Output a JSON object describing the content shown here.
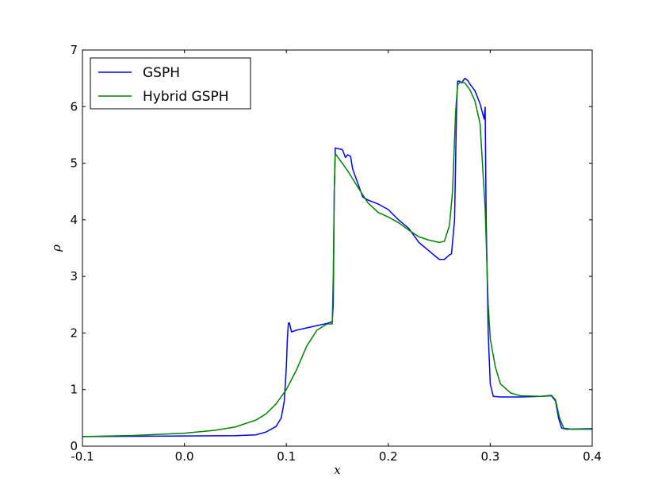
{
  "chart_data": {
    "type": "line",
    "xlabel": "x",
    "ylabel": "ρ",
    "xlim": [
      -0.1,
      0.4
    ],
    "ylim": [
      0,
      7
    ],
    "xticks": [
      "-0.1",
      "0.0",
      "0.1",
      "0.2",
      "0.3",
      "0.4"
    ],
    "xtick_values": [
      -0.1,
      0.0,
      0.1,
      0.2,
      0.3,
      0.4
    ],
    "yticks": [
      "0",
      "1",
      "2",
      "3",
      "4",
      "5",
      "6",
      "7"
    ],
    "ytick_values": [
      0,
      1,
      2,
      3,
      4,
      5,
      6,
      7
    ],
    "grid": false,
    "legend_position": "top-left",
    "series": [
      {
        "name": "GSPH",
        "color": "#0000ff",
        "points": [
          [
            -0.1,
            0.17
          ],
          [
            -0.05,
            0.175
          ],
          [
            0.0,
            0.18
          ],
          [
            0.05,
            0.185
          ],
          [
            0.07,
            0.2
          ],
          [
            0.08,
            0.25
          ],
          [
            0.09,
            0.35
          ],
          [
            0.095,
            0.5
          ],
          [
            0.098,
            0.8
          ],
          [
            0.1,
            1.4
          ],
          [
            0.101,
            1.9
          ],
          [
            0.102,
            2.17
          ],
          [
            0.103,
            2.18
          ],
          [
            0.104,
            2.1
          ],
          [
            0.105,
            2.02
          ],
          [
            0.11,
            2.05
          ],
          [
            0.12,
            2.09
          ],
          [
            0.13,
            2.13
          ],
          [
            0.14,
            2.17
          ],
          [
            0.145,
            2.2
          ],
          [
            0.146,
            2.5
          ],
          [
            0.147,
            4.5
          ],
          [
            0.148,
            5.27
          ],
          [
            0.15,
            5.26
          ],
          [
            0.155,
            5.24
          ],
          [
            0.158,
            5.1
          ],
          [
            0.16,
            5.15
          ],
          [
            0.163,
            5.12
          ],
          [
            0.165,
            4.9
          ],
          [
            0.17,
            4.65
          ],
          [
            0.175,
            4.4
          ],
          [
            0.18,
            4.35
          ],
          [
            0.19,
            4.28
          ],
          [
            0.2,
            4.18
          ],
          [
            0.21,
            4.0
          ],
          [
            0.22,
            3.85
          ],
          [
            0.23,
            3.6
          ],
          [
            0.24,
            3.45
          ],
          [
            0.25,
            3.3
          ],
          [
            0.255,
            3.3
          ],
          [
            0.26,
            3.38
          ],
          [
            0.262,
            3.4
          ],
          [
            0.265,
            4.0
          ],
          [
            0.267,
            6.0
          ],
          [
            0.268,
            6.45
          ],
          [
            0.27,
            6.45
          ],
          [
            0.272,
            6.42
          ],
          [
            0.275,
            6.5
          ],
          [
            0.278,
            6.46
          ],
          [
            0.28,
            6.4
          ],
          [
            0.285,
            6.28
          ],
          [
            0.29,
            6.05
          ],
          [
            0.294,
            5.78
          ],
          [
            0.295,
            5.99
          ],
          [
            0.296,
            4.0
          ],
          [
            0.298,
            2.0
          ],
          [
            0.3,
            1.1
          ],
          [
            0.303,
            0.88
          ],
          [
            0.31,
            0.87
          ],
          [
            0.33,
            0.87
          ],
          [
            0.35,
            0.88
          ],
          [
            0.36,
            0.89
          ],
          [
            0.364,
            0.8
          ],
          [
            0.367,
            0.5
          ],
          [
            0.37,
            0.32
          ],
          [
            0.375,
            0.3
          ],
          [
            0.4,
            0.31
          ]
        ]
      },
      {
        "name": "Hybrid GSPH",
        "color": "#008000",
        "points": [
          [
            -0.1,
            0.17
          ],
          [
            -0.05,
            0.19
          ],
          [
            0.0,
            0.23
          ],
          [
            0.03,
            0.28
          ],
          [
            0.05,
            0.34
          ],
          [
            0.07,
            0.46
          ],
          [
            0.08,
            0.57
          ],
          [
            0.09,
            0.75
          ],
          [
            0.1,
            1.0
          ],
          [
            0.11,
            1.35
          ],
          [
            0.12,
            1.77
          ],
          [
            0.13,
            2.05
          ],
          [
            0.14,
            2.16
          ],
          [
            0.145,
            2.16
          ],
          [
            0.146,
            3.0
          ],
          [
            0.147,
            4.5
          ],
          [
            0.148,
            5.17
          ],
          [
            0.15,
            5.12
          ],
          [
            0.16,
            4.87
          ],
          [
            0.17,
            4.58
          ],
          [
            0.18,
            4.3
          ],
          [
            0.19,
            4.13
          ],
          [
            0.2,
            4.05
          ],
          [
            0.21,
            3.95
          ],
          [
            0.22,
            3.82
          ],
          [
            0.23,
            3.7
          ],
          [
            0.24,
            3.64
          ],
          [
            0.25,
            3.6
          ],
          [
            0.255,
            3.62
          ],
          [
            0.26,
            3.9
          ],
          [
            0.263,
            4.5
          ],
          [
            0.266,
            5.9
          ],
          [
            0.268,
            6.38
          ],
          [
            0.27,
            6.43
          ],
          [
            0.275,
            6.42
          ],
          [
            0.28,
            6.3
          ],
          [
            0.285,
            6.1
          ],
          [
            0.29,
            5.7
          ],
          [
            0.295,
            4.2
          ],
          [
            0.298,
            2.5
          ],
          [
            0.3,
            1.9
          ],
          [
            0.305,
            1.4
          ],
          [
            0.31,
            1.1
          ],
          [
            0.32,
            0.94
          ],
          [
            0.33,
            0.89
          ],
          [
            0.35,
            0.88
          ],
          [
            0.36,
            0.9
          ],
          [
            0.364,
            0.82
          ],
          [
            0.368,
            0.5
          ],
          [
            0.372,
            0.32
          ],
          [
            0.38,
            0.3
          ],
          [
            0.4,
            0.3
          ]
        ]
      }
    ]
  }
}
